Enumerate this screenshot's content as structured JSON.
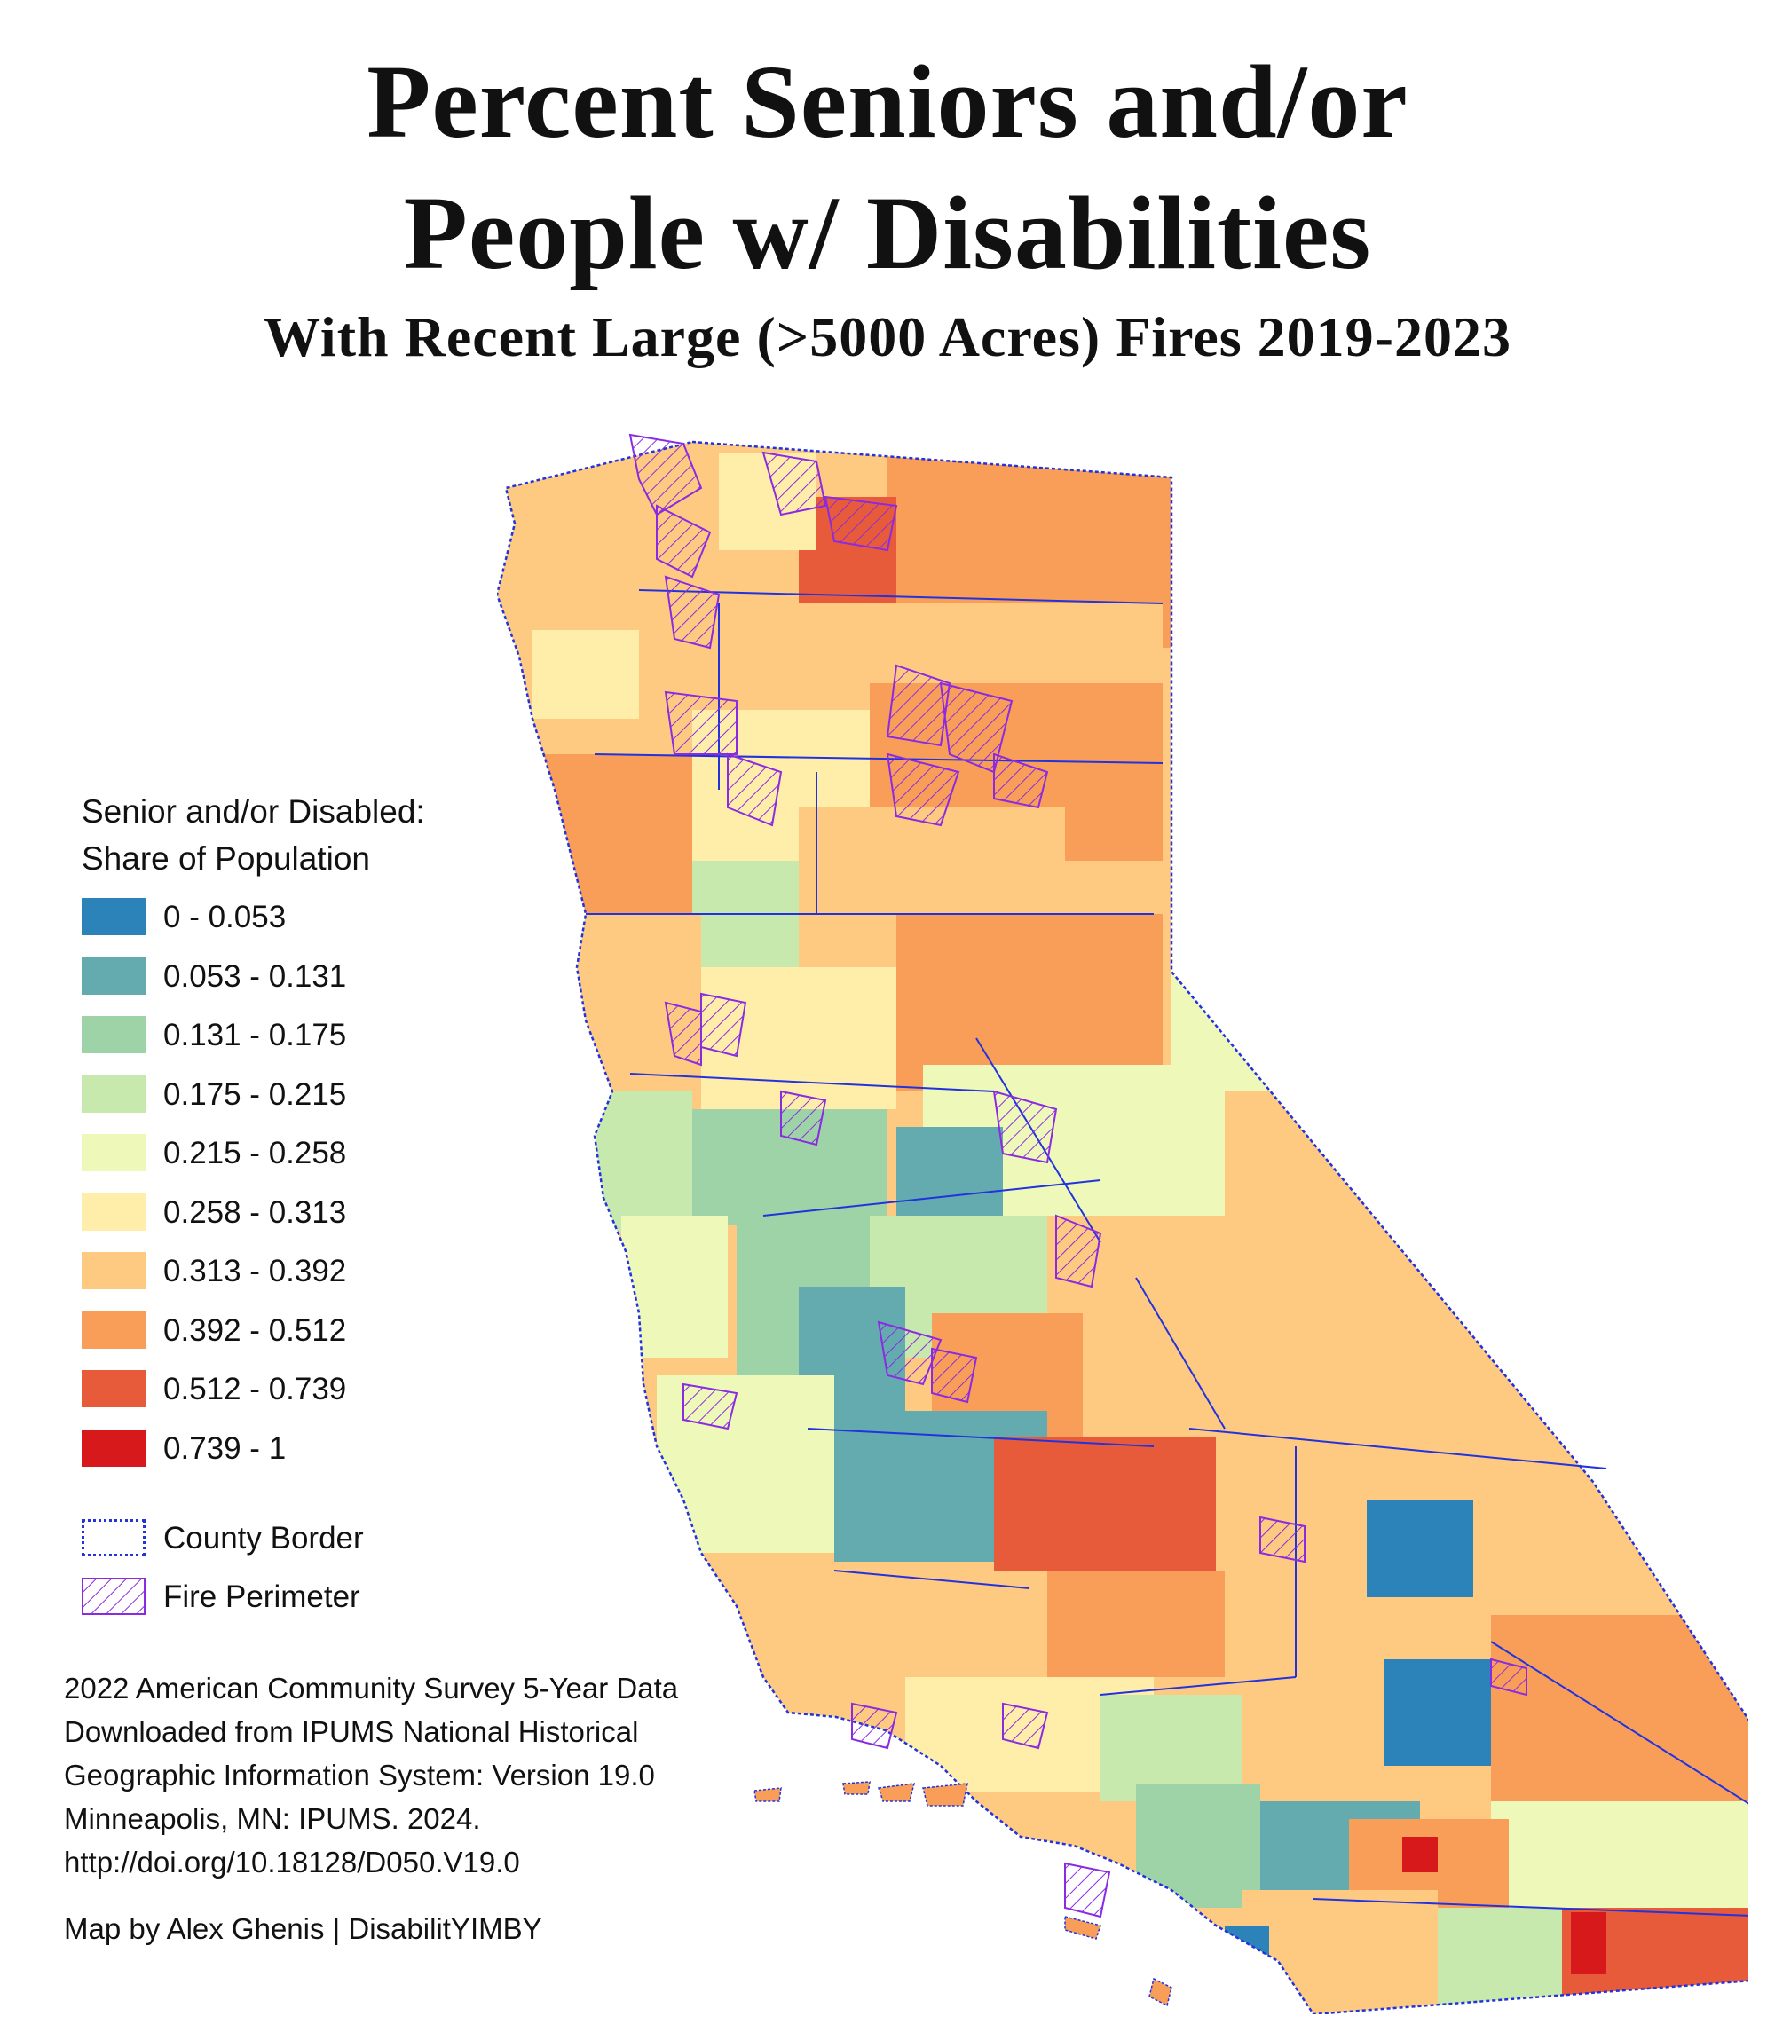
{
  "title": {
    "line1": "Percent Seniors and/or",
    "line2": "People w/ Disabilities",
    "subtitle": "With Recent Large (>5000 Acres) Fires 2019-2023"
  },
  "legend": {
    "title_line1": "Senior and/or Disabled:",
    "title_line2": "Share of Population",
    "classes": [
      {
        "label": "0 - 0.053",
        "color": "#2b83ba"
      },
      {
        "label": "0.053 - 0.131",
        "color": "#64abb0"
      },
      {
        "label": "0.131 - 0.175",
        "color": "#9dd3a7"
      },
      {
        "label": "0.175 - 0.215",
        "color": "#c7e9ad"
      },
      {
        "label": "0.215 - 0.258",
        "color": "#edf8b9"
      },
      {
        "label": "0.258 - 0.313",
        "color": "#ffedaa"
      },
      {
        "label": "0.313 - 0.392",
        "color": "#fec980"
      },
      {
        "label": "0.392 - 0.512",
        "color": "#f99e59"
      },
      {
        "label": "0.512 - 0.739",
        "color": "#e85b3a"
      },
      {
        "label": "0.739 - 1",
        "color": "#d7191c"
      }
    ],
    "county_border_label": "County Border",
    "county_border_color": "#2233dd",
    "fire_perimeter_label": "Fire Perimeter",
    "fire_perimeter_color": "#8a2be2"
  },
  "source": {
    "line1": "2022 American Community Survey 5-Year Data",
    "line2": "Downloaded from IPUMS National Historical",
    "line3": "Geographic Information System: Version 19.0",
    "line4": "Minneapolis, MN: IPUMS. 2024.",
    "line5": "http://doi.org/10.18128/D050.V19.0"
  },
  "credit": "Map by Alex Ghenis | DisabilitYIMBY"
}
